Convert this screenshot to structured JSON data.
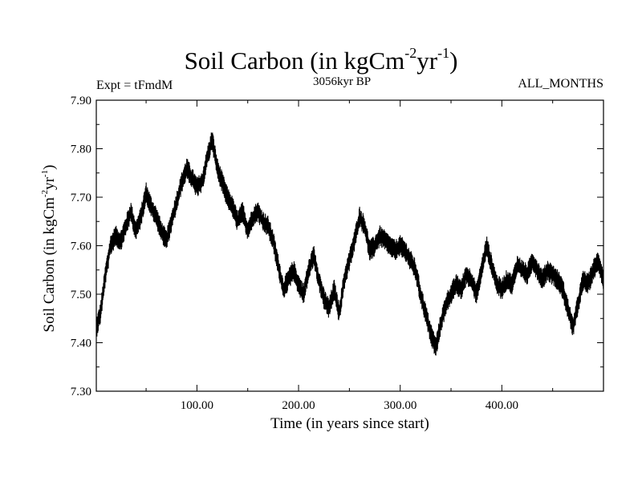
{
  "title": {
    "main": "Soil Carbon (in kgCm",
    "sup1": "-2",
    "mid": "yr",
    "sup2": "-1",
    "end": ")"
  },
  "subtitles": {
    "left": "Expt = tFmdM",
    "center": "3056kyr BP",
    "right": "ALL_MONTHS"
  },
  "chart_data": {
    "type": "line",
    "title": "Soil Carbon (in kgCm-2yr-1)",
    "xlabel": "Time (in years since start)",
    "ylabel": "Soil Carbon (in kgCm-2yr-1)",
    "xlim": [
      1,
      500
    ],
    "ylim": [
      7.3,
      7.9
    ],
    "x_ticks": [
      100,
      200,
      300,
      400
    ],
    "x_tick_labels": [
      "100.00",
      "200.00",
      "300.00",
      "400.00"
    ],
    "y_ticks": [
      7.3,
      7.4,
      7.5,
      7.6,
      7.7,
      7.8,
      7.9
    ],
    "y_tick_labels": [
      "7.30",
      "7.40",
      "7.50",
      "7.60",
      "7.70",
      "7.80",
      "7.90"
    ],
    "noise_amplitude": 0.022,
    "series": [
      {
        "name": "Soil Carbon",
        "x": [
          1,
          5,
          10,
          15,
          20,
          25,
          30,
          35,
          40,
          45,
          50,
          55,
          60,
          65,
          70,
          75,
          80,
          85,
          90,
          95,
          100,
          105,
          110,
          115,
          120,
          125,
          130,
          135,
          140,
          145,
          150,
          155,
          160,
          165,
          170,
          175,
          180,
          185,
          190,
          195,
          200,
          205,
          210,
          215,
          220,
          225,
          230,
          235,
          240,
          245,
          250,
          255,
          260,
          265,
          270,
          275,
          280,
          285,
          290,
          295,
          300,
          305,
          310,
          315,
          320,
          325,
          330,
          335,
          340,
          345,
          350,
          355,
          360,
          365,
          370,
          375,
          380,
          385,
          390,
          395,
          400,
          405,
          410,
          415,
          420,
          425,
          430,
          435,
          440,
          445,
          450,
          455,
          460,
          465,
          470,
          475,
          480,
          485,
          490,
          495,
          500
        ],
        "values": [
          7.43,
          7.46,
          7.54,
          7.6,
          7.62,
          7.61,
          7.64,
          7.67,
          7.63,
          7.66,
          7.71,
          7.68,
          7.66,
          7.63,
          7.61,
          7.65,
          7.69,
          7.73,
          7.76,
          7.74,
          7.72,
          7.73,
          7.78,
          7.82,
          7.76,
          7.73,
          7.7,
          7.68,
          7.65,
          7.67,
          7.63,
          7.66,
          7.67,
          7.65,
          7.64,
          7.61,
          7.56,
          7.51,
          7.53,
          7.55,
          7.52,
          7.5,
          7.55,
          7.58,
          7.53,
          7.49,
          7.47,
          7.51,
          7.46,
          7.53,
          7.57,
          7.61,
          7.66,
          7.64,
          7.59,
          7.6,
          7.62,
          7.61,
          7.6,
          7.59,
          7.6,
          7.59,
          7.57,
          7.55,
          7.5,
          7.46,
          7.42,
          7.39,
          7.44,
          7.48,
          7.5,
          7.52,
          7.51,
          7.54,
          7.53,
          7.5,
          7.55,
          7.6,
          7.56,
          7.52,
          7.51,
          7.53,
          7.52,
          7.56,
          7.55,
          7.54,
          7.57,
          7.55,
          7.53,
          7.55,
          7.54,
          7.53,
          7.51,
          7.47,
          7.43,
          7.48,
          7.53,
          7.52,
          7.55,
          7.57,
          7.53
        ]
      }
    ]
  }
}
